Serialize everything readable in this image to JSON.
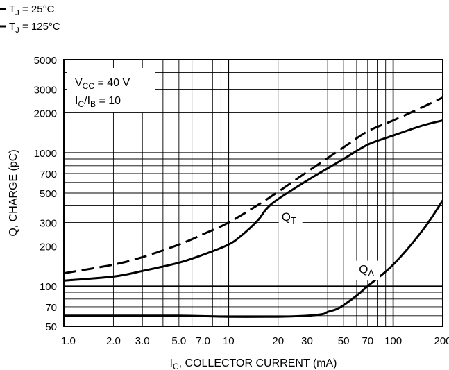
{
  "chart_data": {
    "type": "line",
    "x_scale": "log",
    "y_scale": "log",
    "xlim": [
      1,
      200
    ],
    "ylim": [
      50,
      5000
    ],
    "grid": true,
    "xlabel": {
      "main": "I",
      "sub": "C",
      "rest": ", COLLECTOR CURRENT (mA)"
    },
    "ylabel": "Q, CHARGE (pC)",
    "x_ticks": [
      {
        "v": 1,
        "label": "1.0"
      },
      {
        "v": 2,
        "label": "2.0"
      },
      {
        "v": 3,
        "label": "3.0"
      },
      {
        "v": 5,
        "label": "5.0"
      },
      {
        "v": 7,
        "label": "7.0"
      },
      {
        "v": 10,
        "label": "10"
      },
      {
        "v": 20,
        "label": "20"
      },
      {
        "v": 30,
        "label": "30"
      },
      {
        "v": 50,
        "label": "50"
      },
      {
        "v": 70,
        "label": "70"
      },
      {
        "v": 100,
        "label": "100"
      },
      {
        "v": 200,
        "label": "200"
      }
    ],
    "y_ticks": [
      {
        "v": 50,
        "label": "50"
      },
      {
        "v": 70,
        "label": "70"
      },
      {
        "v": 100,
        "label": "100"
      },
      {
        "v": 200,
        "label": "200"
      },
      {
        "v": 300,
        "label": "300"
      },
      {
        "v": 500,
        "label": "500"
      },
      {
        "v": 700,
        "label": "700"
      },
      {
        "v": 1000,
        "label": "1000"
      },
      {
        "v": 2000,
        "label": "2000"
      },
      {
        "v": 3000,
        "label": "3000"
      },
      {
        "v": 5000,
        "label": "5000"
      }
    ],
    "conditions": [
      {
        "main": "V",
        "sub": "CC",
        "rest": " = 40 V"
      },
      {
        "main": "I",
        "sub": "C",
        "mid": "/I",
        "sub2": "B",
        "rest": " = 10"
      }
    ],
    "legend": [
      {
        "main": "T",
        "sub": "J",
        "rest": " = 25°C",
        "style": "solid"
      },
      {
        "main": "T",
        "sub": "J",
        "rest": " = 125°C",
        "style": "dashed"
      }
    ],
    "series": [
      {
        "name": "QT",
        "label": {
          "main": "Q",
          "sub": "T"
        },
        "label_at": [
          21,
          310
        ],
        "temperature": "25°C",
        "style": "solid",
        "x": [
          1,
          2,
          3,
          5,
          7,
          10,
          12,
          15,
          17,
          20,
          30,
          50,
          70,
          100,
          150,
          200
        ],
        "y": [
          110,
          118,
          130,
          150,
          172,
          205,
          240,
          310,
          380,
          450,
          620,
          900,
          1150,
          1350,
          1600,
          1750
        ]
      },
      {
        "name": "QT (125°C)",
        "temperature": "125°C",
        "style": "dashed",
        "x": [
          1,
          2,
          3,
          5,
          7,
          10,
          15,
          20,
          30,
          50,
          70,
          100,
          150,
          200
        ],
        "y": [
          125,
          145,
          165,
          205,
          245,
          300,
          405,
          510,
          720,
          1100,
          1450,
          1750,
          2200,
          2600
        ]
      },
      {
        "name": "QA",
        "label": {
          "main": "Q",
          "sub": "A"
        },
        "label_at": [
          62,
          125
        ],
        "temperature": "25°C",
        "style": "solid",
        "x": [
          1,
          2,
          5,
          10,
          20,
          30,
          35,
          38,
          40,
          45,
          50,
          60,
          70,
          100,
          150,
          200
        ],
        "y": [
          60,
          60,
          60,
          59,
          59,
          60,
          61,
          62,
          64,
          67,
          72,
          85,
          100,
          145,
          260,
          440
        ]
      }
    ]
  }
}
